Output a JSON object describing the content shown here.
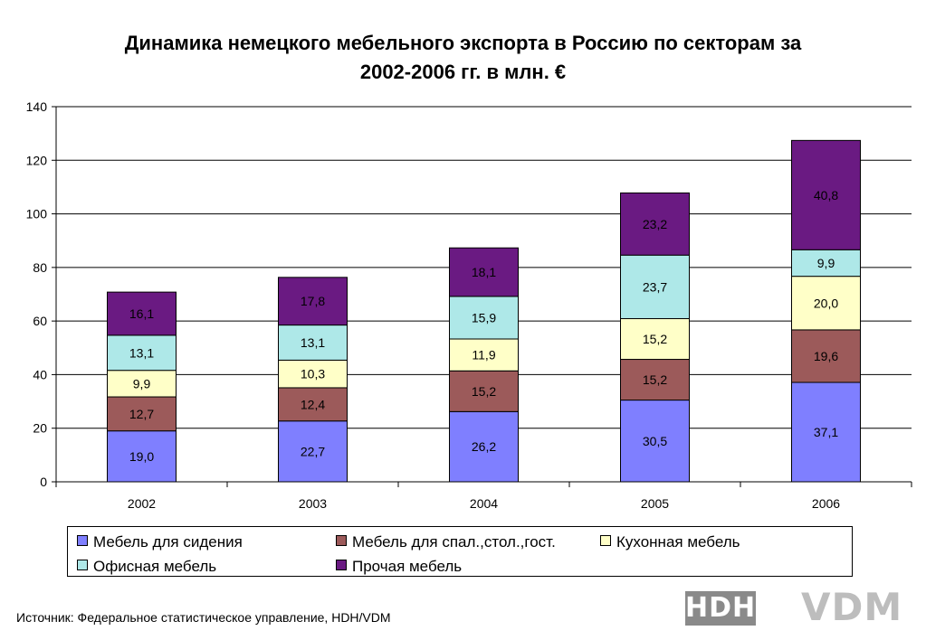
{
  "header": {
    "title_line1": "Динамика немецкого мебельного экспорта в Россию по секторам за",
    "title_line2": "2002-2006 гг. в млн. €"
  },
  "source": "Источник: Федеральное статистическое управление, HDH/VDM",
  "logos": {
    "left": "HDH",
    "right": "VDM"
  },
  "chart_data": {
    "type": "bar",
    "stacked": true,
    "title": "Динамика немецкого мебельного экспорта в Россию по секторам за 2002-2006 гг. в млн. €",
    "categories": [
      "2002",
      "2003",
      "2004",
      "2005",
      "2006"
    ],
    "ylim": [
      0,
      140
    ],
    "yticks": [
      0,
      20,
      40,
      60,
      80,
      100,
      120,
      140
    ],
    "grid": true,
    "legend_position": "bottom",
    "series": [
      {
        "name": "Мебель для сидения",
        "color": "#7f7fff",
        "values": [
          19.0,
          22.7,
          26.2,
          30.5,
          37.1
        ],
        "labels": [
          "19,0",
          "22,7",
          "26,2",
          "30,5",
          "37,1"
        ]
      },
      {
        "name": "Мебель для спал.,стол.,гост.",
        "color": "#9c5a5a",
        "values": [
          12.7,
          12.4,
          15.2,
          15.2,
          19.6
        ],
        "labels": [
          "12,7",
          "12,4",
          "15,2",
          "15,2",
          "19,6"
        ]
      },
      {
        "name": "Кухонная мебель",
        "color": "#ffffc8",
        "values": [
          9.9,
          10.3,
          11.9,
          15.2,
          20.0
        ],
        "labels": [
          "9,9",
          "10,3",
          "11,9",
          "15,2",
          "20,0"
        ]
      },
      {
        "name": "Офисная мебель",
        "color": "#aee8e8",
        "values": [
          13.1,
          13.1,
          15.9,
          23.7,
          9.9
        ],
        "labels": [
          "13,1",
          "13,1",
          "15,9",
          "23,7",
          "9,9"
        ]
      },
      {
        "name": "Прочая мебель",
        "color": "#6a1a82",
        "values": [
          16.1,
          17.8,
          18.1,
          23.2,
          40.8
        ],
        "labels": [
          "16,1",
          "17,8",
          "18,1",
          "23,2",
          "40,8"
        ]
      }
    ]
  }
}
